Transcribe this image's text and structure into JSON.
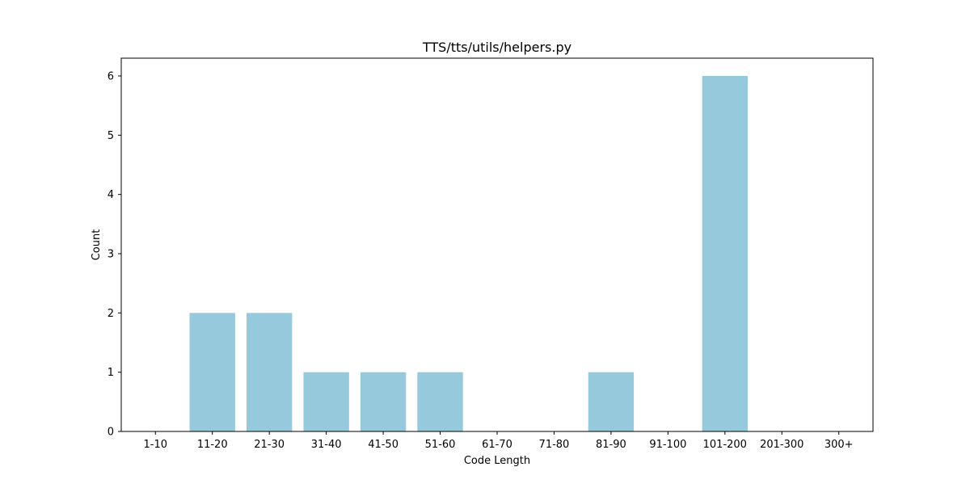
{
  "chart_data": {
    "type": "bar",
    "title": "TTS/tts/utils/helpers.py",
    "xlabel": "Code Length",
    "ylabel": "Count",
    "categories": [
      "1-10",
      "11-20",
      "21-30",
      "31-40",
      "41-50",
      "51-60",
      "61-70",
      "71-80",
      "81-90",
      "91-100",
      "101-200",
      "201-300",
      "300+"
    ],
    "values": [
      0,
      2,
      2,
      1,
      1,
      1,
      0,
      0,
      1,
      0,
      6,
      0,
      0
    ],
    "ylim": [
      0,
      6.3
    ],
    "yticks": [
      0,
      1,
      2,
      3,
      4,
      5,
      6
    ],
    "bar_color": "#96c9dc",
    "grid": false,
    "legend": false
  }
}
